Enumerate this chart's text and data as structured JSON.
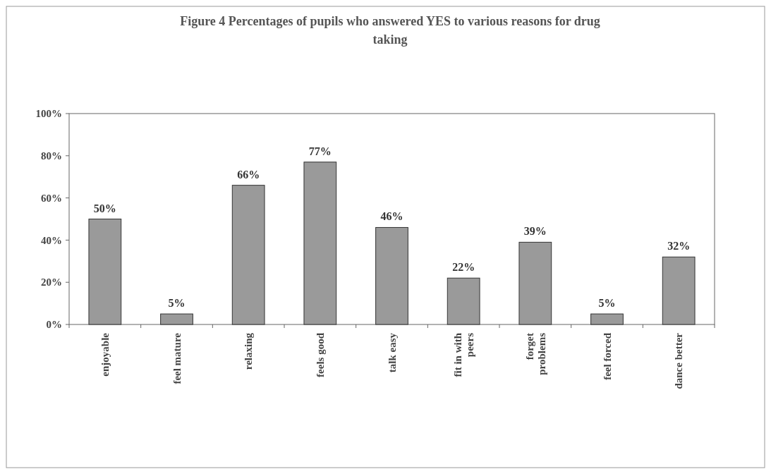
{
  "chart_data": {
    "type": "bar",
    "title": "Figure 4   Percentages of  pupils who answered YES to various reasons for drug taking",
    "categories": [
      "enjoyable",
      "feel mature",
      "relaxing",
      "feels good",
      "talk easy",
      "fit in with peers",
      "forget problems",
      "feel forced",
      "dance better"
    ],
    "values": [
      50,
      5,
      66,
      77,
      46,
      22,
      39,
      5,
      32
    ],
    "color": "#9a9a9a",
    "ylim": [
      0,
      100
    ],
    "yticks": [
      {
        "value": 0,
        "label": "0%"
      },
      {
        "value": 20,
        "label": "20%"
      },
      {
        "value": 40,
        "label": "40%"
      },
      {
        "value": 60,
        "label": "60%"
      },
      {
        "value": 80,
        "label": "80%"
      },
      {
        "value": 100,
        "label": "100%"
      }
    ],
    "value_labels": [
      "50%",
      "5%",
      "66%",
      "77%",
      "46%",
      "22%",
      "39%",
      "5%",
      "32%"
    ],
    "grid": false
  }
}
